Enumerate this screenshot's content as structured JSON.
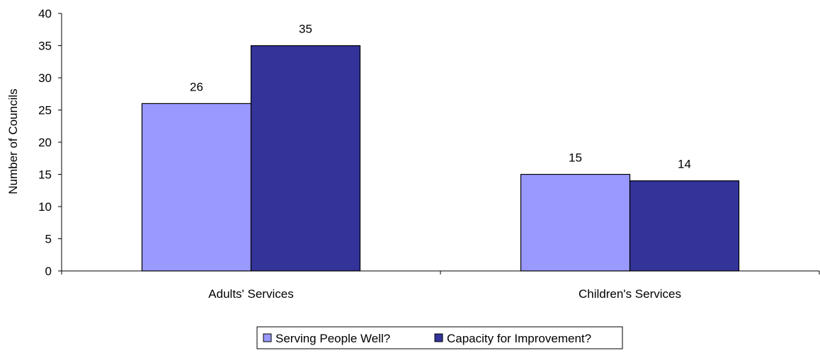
{
  "chart_data": {
    "type": "bar",
    "categories": [
      "Adults' Services",
      "Children's Services"
    ],
    "series": [
      {
        "name": "Serving People Well?",
        "values": [
          26,
          15
        ],
        "color": "#9999FF"
      },
      {
        "name": "Capacity for Improvement?",
        "values": [
          35,
          14
        ],
        "color": "#333399"
      }
    ],
    "xlabel": "",
    "ylabel": "Number of Councils",
    "ylim": [
      0,
      40
    ],
    "yticks": [
      0,
      5,
      10,
      15,
      20,
      25,
      30,
      35,
      40
    ],
    "grid": false,
    "legend_position": "bottom"
  }
}
